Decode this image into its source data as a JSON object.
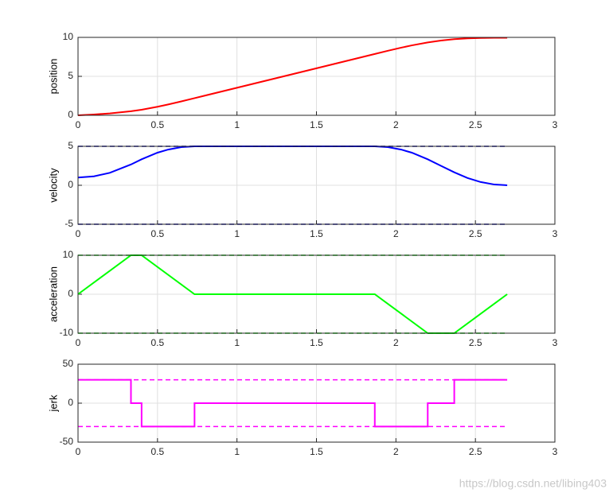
{
  "chart_data": [
    {
      "type": "line",
      "ylabel": "position",
      "xlim": [
        0,
        3
      ],
      "ylim": [
        0,
        10
      ],
      "xticks": [
        0,
        0.5,
        1,
        1.5,
        2,
        2.5,
        3
      ],
      "yticks": [
        0,
        5,
        10
      ],
      "grid": true,
      "series": [
        {
          "color": "#ff0000",
          "style": "solid",
          "x": [
            0,
            0.1,
            0.2,
            0.333,
            0.4,
            0.5,
            0.567,
            0.65,
            0.733,
            1.867,
            1.95,
            2.033,
            2.1,
            2.2,
            2.283,
            2.367,
            2.45,
            2.533,
            2.62,
            2.7
          ],
          "values": [
            0,
            0.105,
            0.24,
            0.519,
            0.719,
            1.097,
            1.391,
            1.786,
            2.201,
            7.868,
            8.282,
            8.678,
            8.972,
            9.35,
            9.593,
            9.767,
            9.874,
            9.929,
            9.95,
            9.952
          ]
        }
      ]
    },
    {
      "type": "line",
      "ylabel": "velocity",
      "xlim": [
        0,
        3
      ],
      "ylim": [
        -5,
        5
      ],
      "xticks": [
        0,
        0.5,
        1,
        1.5,
        2,
        2.5,
        3
      ],
      "yticks": [
        -5,
        0,
        5
      ],
      "grid": true,
      "series": [
        {
          "color": "#0000ff",
          "style": "solid",
          "x": [
            0,
            0.1,
            0.2,
            0.333,
            0.4,
            0.5,
            0.567,
            0.65,
            0.733,
            1.867,
            1.95,
            2.033,
            2.1,
            2.2,
            2.283,
            2.367,
            2.45,
            2.533,
            2.62,
            2.7
          ],
          "values": [
            1,
            1.15,
            1.6,
            2.667,
            3.333,
            4.183,
            4.583,
            4.896,
            5,
            5,
            4.896,
            4.583,
            4.183,
            3.333,
            2.5,
            1.667,
            0.938,
            0.417,
            0.097,
            0
          ]
        },
        {
          "color": "#0000aa",
          "style": "dashed",
          "x": [
            0,
            2.7
          ],
          "values": [
            5,
            5
          ]
        },
        {
          "color": "#0000aa",
          "style": "dashed",
          "x": [
            0,
            2.7
          ],
          "values": [
            -5,
            -5
          ]
        }
      ]
    },
    {
      "type": "line",
      "ylabel": "acceleration",
      "xlim": [
        0,
        3
      ],
      "ylim": [
        -10,
        10
      ],
      "xticks": [
        0,
        0.5,
        1,
        1.5,
        2,
        2.5,
        3
      ],
      "yticks": [
        -10,
        0,
        10
      ],
      "grid": true,
      "series": [
        {
          "color": "#00ff00",
          "style": "solid",
          "x": [
            0,
            0.333,
            0.4,
            0.733,
            1.867,
            2.2,
            2.367,
            2.7
          ],
          "values": [
            0,
            10,
            10,
            0,
            0,
            -10,
            -10,
            0
          ]
        },
        {
          "color": "#00cc00",
          "style": "dashed",
          "x": [
            0,
            2.7
          ],
          "values": [
            10,
            10
          ]
        },
        {
          "color": "#00cc00",
          "style": "dashed",
          "x": [
            0,
            2.7
          ],
          "values": [
            -10,
            -10
          ]
        }
      ]
    },
    {
      "type": "line",
      "ylabel": "jerk",
      "xlim": [
        0,
        3
      ],
      "ylim": [
        -50,
        50
      ],
      "xticks": [
        0,
        0.5,
        1,
        1.5,
        2,
        2.5,
        3
      ],
      "yticks": [
        -50,
        0,
        50
      ],
      "grid": true,
      "series": [
        {
          "color": "#ff00ff",
          "style": "solid",
          "x": [
            0,
            0.333,
            0.333,
            0.4,
            0.4,
            0.733,
            0.733,
            1.867,
            1.867,
            2.2,
            2.2,
            2.367,
            2.367,
            2.7
          ],
          "values": [
            30,
            30,
            0,
            0,
            -30,
            -30,
            0,
            0,
            -30,
            -30,
            0,
            0,
            30,
            30
          ]
        },
        {
          "color": "#ff00ff",
          "style": "dashed",
          "x": [
            0,
            2.7
          ],
          "values": [
            30,
            30
          ]
        },
        {
          "color": "#ff00ff",
          "style": "dashed",
          "x": [
            0,
            2.7
          ],
          "values": [
            -30,
            -30
          ]
        }
      ]
    }
  ],
  "watermark": "https://blog.csdn.net/libing403"
}
